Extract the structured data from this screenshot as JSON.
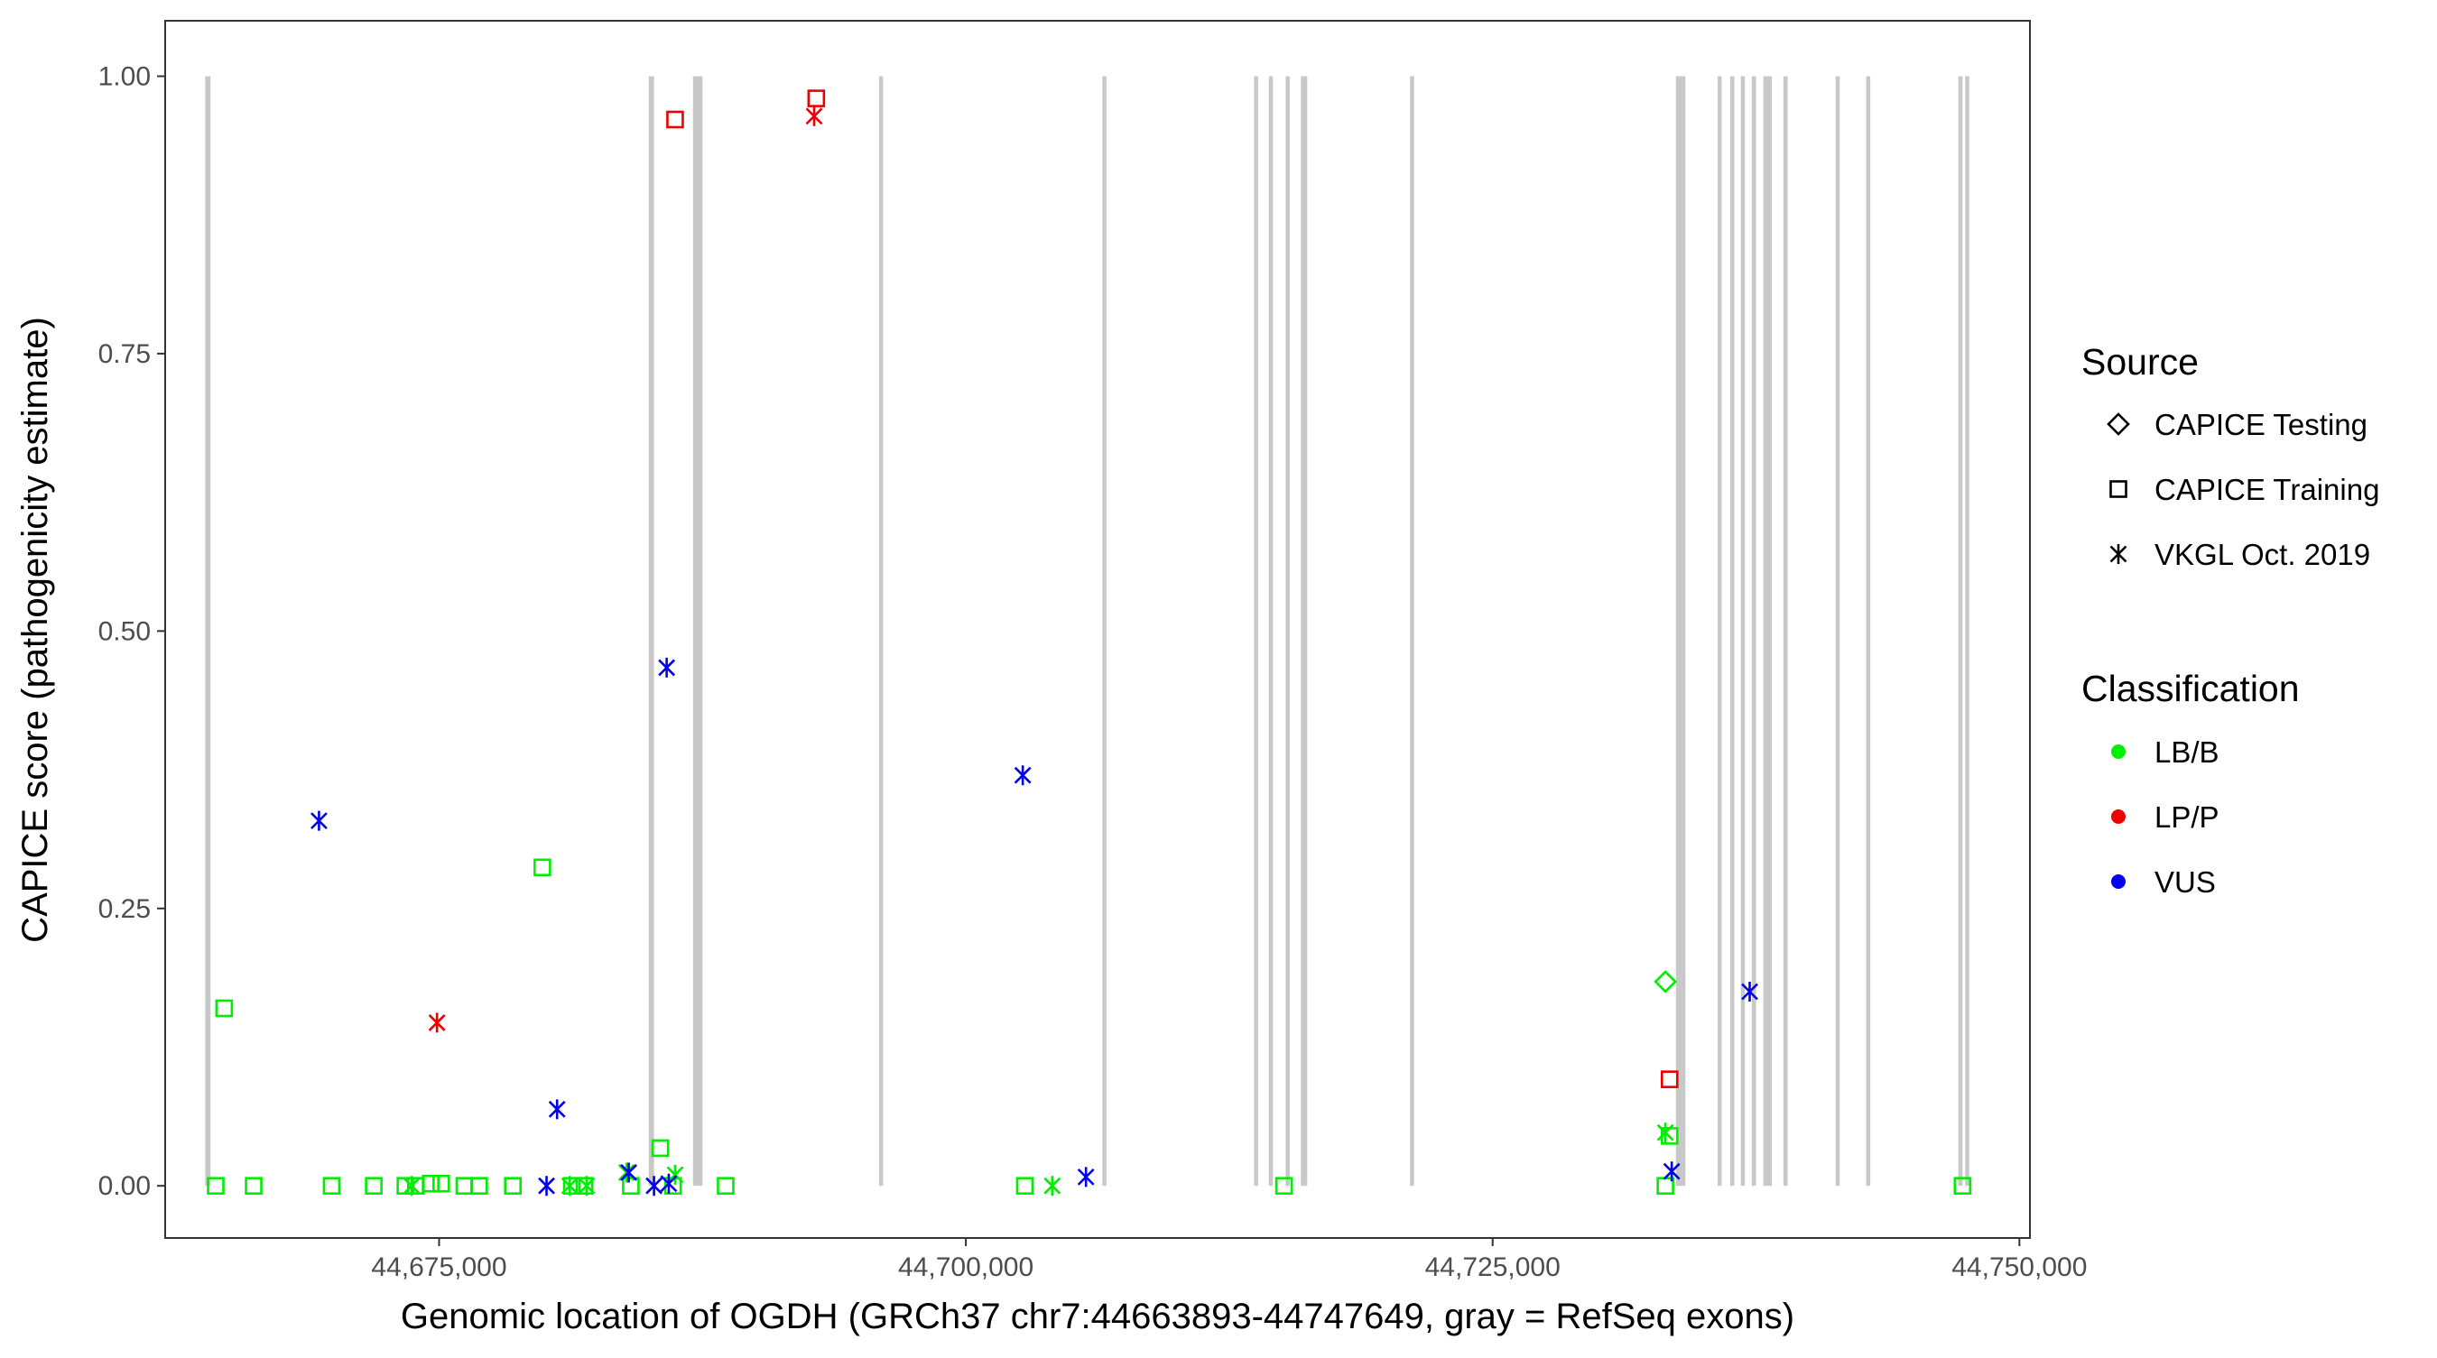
{
  "chart_data": {
    "type": "scatter",
    "xlabel": "Genomic location of OGDH (GRCh37 chr7:44663893-44747649, gray = RefSeq exons)",
    "ylabel": "CAPICE score (pathogenicity estimate)",
    "xlim": [
      44662000,
      44750500
    ],
    "ylim": [
      -0.047,
      1.05
    ],
    "x_ticks": [
      44675000,
      44700000,
      44725000,
      44750000
    ],
    "x_tick_labels": [
      "44,675,000",
      "44,700,000",
      "44,725,000",
      "44,750,000"
    ],
    "y_ticks": [
      0,
      0.25,
      0.5,
      0.75,
      1.0
    ],
    "y_tick_labels": [
      "0.00",
      "0.25",
      "0.50",
      "0.75",
      "1.00"
    ],
    "grid": false,
    "exons": [
      {
        "start": 44663900,
        "end": 44664150
      },
      {
        "start": 44684950,
        "end": 44685200
      },
      {
        "start": 44687050,
        "end": 44687500
      },
      {
        "start": 44695900,
        "end": 44696050
      },
      {
        "start": 44706500,
        "end": 44706650
      },
      {
        "start": 44713700,
        "end": 44713850
      },
      {
        "start": 44714400,
        "end": 44714550
      },
      {
        "start": 44715200,
        "end": 44715350
      },
      {
        "start": 44715900,
        "end": 44716200
      },
      {
        "start": 44721100,
        "end": 44721250
      },
      {
        "start": 44733700,
        "end": 44734150
      },
      {
        "start": 44735700,
        "end": 44735850
      },
      {
        "start": 44736300,
        "end": 44736450
      },
      {
        "start": 44736800,
        "end": 44736950
      },
      {
        "start": 44737300,
        "end": 44737500
      },
      {
        "start": 44737850,
        "end": 44738250
      },
      {
        "start": 44738800,
        "end": 44739000
      },
      {
        "start": 44741300,
        "end": 44741450
      },
      {
        "start": 44742750,
        "end": 44742900
      },
      {
        "start": 44747100,
        "end": 44747300
      },
      {
        "start": 44747450,
        "end": 44747600
      }
    ],
    "legend": {
      "position": "right",
      "source_title": "Source",
      "source_entries": [
        {
          "label": "CAPICE Testing",
          "shape": "diamond"
        },
        {
          "label": "CAPICE Training",
          "shape": "square"
        },
        {
          "label": "VKGL Oct. 2019",
          "shape": "asterisk"
        }
      ],
      "class_title": "Classification",
      "class_entries": [
        {
          "label": "LB/B",
          "color": "#00ee00"
        },
        {
          "label": "LP/P",
          "color": "#ee0000"
        },
        {
          "label": "VUS",
          "color": "#0000ee"
        }
      ]
    },
    "series": [
      {
        "source": "CAPICE Training",
        "classification": "LB/B",
        "shape": "square",
        "color": "#00ee00",
        "points": [
          [
            44664400,
            0.0
          ],
          [
            44664800,
            0.16
          ],
          [
            44666200,
            0.0
          ],
          [
            44669900,
            0.0
          ],
          [
            44671900,
            0.0
          ],
          [
            44673400,
            0.0
          ],
          [
            44673900,
            0.0
          ],
          [
            44674600,
            0.002
          ],
          [
            44675100,
            0.002
          ],
          [
            44676200,
            0.0
          ],
          [
            44676900,
            0.0
          ],
          [
            44678500,
            0.0
          ],
          [
            44679900,
            0.287
          ],
          [
            44681300,
            0.0
          ],
          [
            44681900,
            0.0
          ],
          [
            44684100,
            0.0
          ],
          [
            44685500,
            0.034
          ],
          [
            44686100,
            0.0
          ],
          [
            44688600,
            0.0
          ],
          [
            44702800,
            0.0
          ],
          [
            44715100,
            0.0
          ],
          [
            44733200,
            0.0
          ],
          [
            44733400,
            0.045
          ],
          [
            44747300,
            0.0
          ]
        ]
      },
      {
        "source": "CAPICE Training",
        "classification": "LP/P",
        "shape": "square",
        "color": "#ee0000",
        "points": [
          [
            44686200,
            0.961
          ],
          [
            44692900,
            0.98
          ],
          [
            44733400,
            0.096
          ]
        ]
      },
      {
        "source": "CAPICE Testing",
        "classification": "LB/B",
        "shape": "diamond",
        "color": "#00ee00",
        "points": [
          [
            44733200,
            0.184
          ]
        ]
      },
      {
        "source": "VKGL Oct. 2019",
        "classification": "LB/B",
        "shape": "asterisk",
        "color": "#00ee00",
        "points": [
          [
            44673700,
            0.0
          ],
          [
            44681200,
            0.0
          ],
          [
            44682000,
            0.0
          ],
          [
            44683900,
            0.012
          ],
          [
            44686200,
            0.01
          ],
          [
            44704100,
            0.0
          ],
          [
            44733200,
            0.048
          ]
        ]
      },
      {
        "source": "VKGL Oct. 2019",
        "classification": "LP/P",
        "shape": "asterisk",
        "color": "#ee0000",
        "points": [
          [
            44674900,
            0.147
          ],
          [
            44692800,
            0.964
          ]
        ]
      },
      {
        "source": "VKGL Oct. 2019",
        "classification": "VUS",
        "shape": "asterisk",
        "color": "#0000ee",
        "points": [
          [
            44669300,
            0.329
          ],
          [
            44680100,
            0.0
          ],
          [
            44680600,
            0.069
          ],
          [
            44684000,
            0.012
          ],
          [
            44685200,
            0.0
          ],
          [
            44685800,
            0.467
          ],
          [
            44685900,
            0.002
          ],
          [
            44702700,
            0.37
          ],
          [
            44705700,
            0.008
          ],
          [
            44733500,
            0.013
          ],
          [
            44737200,
            0.175
          ]
        ]
      }
    ]
  }
}
